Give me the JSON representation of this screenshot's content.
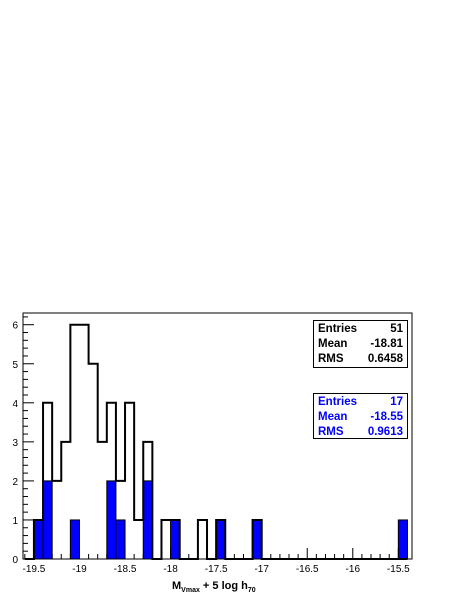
{
  "chart_data": {
    "type": "histogram",
    "xlabel": {
      "main": "M",
      "sub1": "Vmax",
      "mid": " + 5 log h",
      "sub2": "70"
    },
    "xlim": [
      -19.62,
      -15.35
    ],
    "ylim": [
      0,
      6.3
    ],
    "bin_width": 0.1,
    "bin_start": -19.6,
    "x_ticks": [
      -19.5,
      -19,
      -18.5,
      -18,
      -17.5,
      -17,
      -16.5,
      -16,
      -15.5
    ],
    "x_tick_labels": [
      "-19.5",
      "-19",
      "-18.5",
      "-18",
      "-17.5",
      "-17",
      "-16.5",
      "-16",
      "-15.5"
    ],
    "y_ticks": [
      0,
      1,
      2,
      3,
      4,
      5,
      6
    ],
    "y_tick_labels": [
      "0",
      "1",
      "2",
      "3",
      "4",
      "5",
      "6"
    ],
    "series": [
      {
        "style": "outline",
        "color": "#000000",
        "values": [
          0,
          1,
          4,
          2,
          3,
          6,
          6,
          5,
          3,
          4,
          2,
          4,
          1,
          3,
          0,
          1,
          1,
          0,
          0,
          1,
          0,
          1,
          0,
          0,
          0,
          1,
          0,
          0,
          0,
          0,
          0,
          0,
          0,
          0,
          0,
          0,
          0,
          0,
          0,
          0,
          0,
          0
        ]
      },
      {
        "style": "filled",
        "color": "#0000ff",
        "values": [
          0,
          1,
          2,
          0,
          0,
          1,
          0,
          0,
          0,
          2,
          1,
          0,
          0,
          2,
          0,
          0,
          1,
          0,
          0,
          0,
          0,
          1,
          0,
          0,
          0,
          1,
          0,
          0,
          0,
          0,
          0,
          0,
          0,
          0,
          0,
          0,
          0,
          0,
          0,
          0,
          0,
          1
        ]
      }
    ],
    "stats_all": {
      "entries_label": "Entries",
      "entries": "51",
      "mean_label": "Mean",
      "mean": "-18.81",
      "rms_label": "RMS",
      "rms": "0.6458"
    },
    "stats_selected": {
      "entries_label": "Entries",
      "entries": "17",
      "mean_label": "Mean",
      "mean": "-18.55",
      "rms_label": "RMS",
      "rms": "0.9613"
    }
  }
}
